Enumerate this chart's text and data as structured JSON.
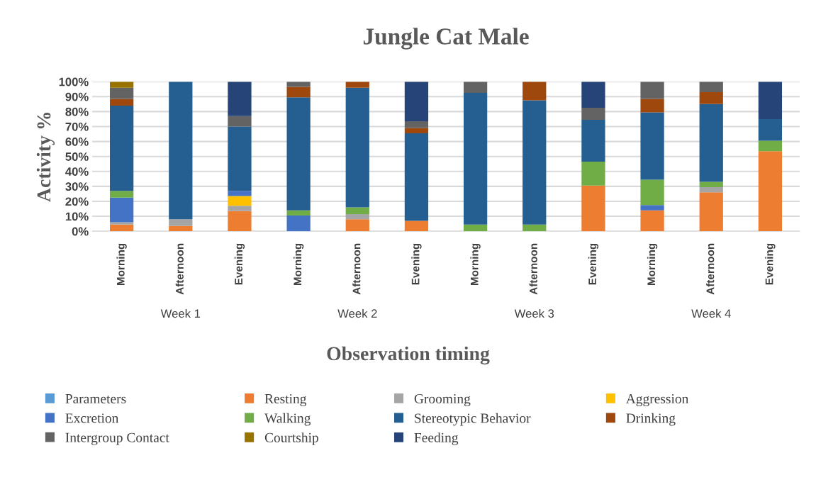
{
  "chart_data": {
    "type": "bar",
    "stacked": true,
    "title": "Jungle Cat Male",
    "xlabel": "Observation timing",
    "ylabel": "Activity %",
    "categories": [
      "Morning",
      "Afternoon",
      "Evening",
      "Morning",
      "Afternoon",
      "Evening",
      "Morning",
      "Afternoon",
      "Evening",
      "Morning",
      "Afternoon",
      "Evening"
    ],
    "annotations": [
      "Week 1",
      "Week 2",
      "Week 3",
      "Week 4"
    ],
    "ylim": [
      0,
      100
    ],
    "yticks": [
      {
        "value": 0,
        "label": "0%"
      },
      {
        "value": 10,
        "label": "10%"
      },
      {
        "value": 20,
        "label": "20%"
      },
      {
        "value": 30,
        "label": "30%"
      },
      {
        "value": 40,
        "label": "40%"
      },
      {
        "value": 50,
        "label": "50%"
      },
      {
        "value": 60,
        "label": "60%"
      },
      {
        "value": 70,
        "label": "70%"
      },
      {
        "value": 80,
        "label": "80%"
      },
      {
        "value": 90,
        "label": "90%"
      },
      {
        "value": 100,
        "label": "100%"
      }
    ],
    "grid": "y",
    "legend": "bottom",
    "series": [
      {
        "name": "Parameters",
        "color": "#5b9bd5",
        "values": [
          0,
          0,
          0,
          0,
          0,
          0,
          0,
          0,
          0,
          0,
          0,
          0
        ]
      },
      {
        "name": "Resting",
        "color": "#ed7d31",
        "values": [
          4.5,
          3.5,
          13.5,
          0,
          8,
          7,
          0,
          0,
          30.5,
          14,
          26,
          53.5
        ]
      },
      {
        "name": "Grooming",
        "color": "#a5a5a5",
        "values": [
          1.5,
          4.5,
          3.5,
          0,
          3.5,
          0,
          0,
          0,
          0,
          0,
          3.5,
          0
        ]
      },
      {
        "name": "Aggression",
        "color": "#ffc000",
        "values": [
          0,
          0,
          6.5,
          0,
          0,
          0,
          0,
          0,
          0,
          0,
          0,
          0
        ]
      },
      {
        "name": "Excretion",
        "color": "#4472c4",
        "values": [
          16.5,
          0,
          3.5,
          10.5,
          0,
          0,
          0,
          0,
          0,
          3.5,
          0,
          0
        ]
      },
      {
        "name": "Walking",
        "color": "#70ad47",
        "values": [
          4.5,
          0,
          0,
          3.5,
          4.5,
          0,
          4.5,
          4.5,
          16,
          17,
          3.5,
          7
        ]
      },
      {
        "name": "Stereotypic Behavior",
        "color": "#255e91",
        "values": [
          57,
          92,
          43,
          75.5,
          80,
          58.5,
          88,
          83,
          28,
          45,
          52,
          14.5
        ]
      },
      {
        "name": "Drinking",
        "color": "#9e480e",
        "values": [
          4.5,
          0,
          0,
          7,
          4,
          3.5,
          0,
          12.5,
          0,
          9,
          8,
          0
        ]
      },
      {
        "name": "Intergroup Contact",
        "color": "#636363",
        "values": [
          7.5,
          0,
          7,
          3.5,
          0,
          4.5,
          7.5,
          0,
          8,
          11.5,
          7,
          0
        ]
      },
      {
        "name": "Courtship",
        "color": "#997300",
        "values": [
          4,
          0,
          0,
          0,
          0,
          0,
          0,
          0,
          0,
          0,
          0,
          0
        ]
      },
      {
        "name": "Feeding",
        "color": "#264478",
        "values": [
          0,
          0,
          23,
          0,
          0,
          26.5,
          0,
          0,
          17.5,
          0,
          0,
          25
        ]
      }
    ]
  }
}
